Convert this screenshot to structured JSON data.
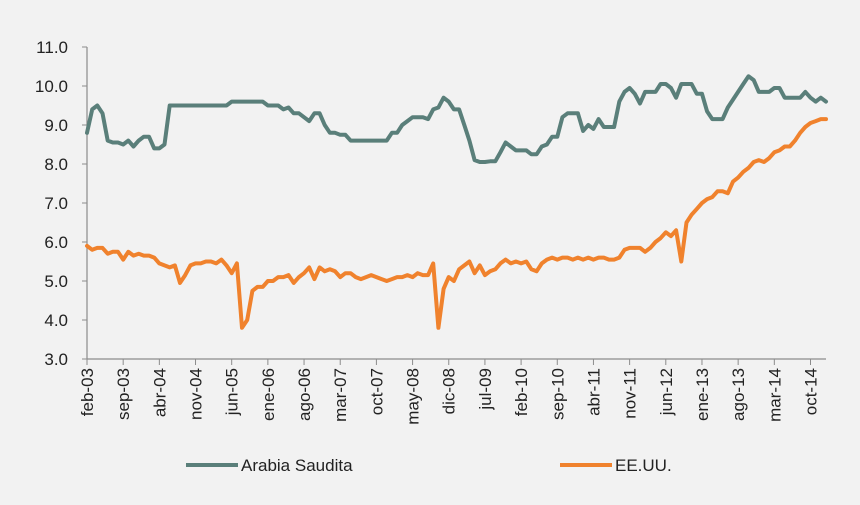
{
  "chart_data": {
    "type": "line",
    "title": "",
    "xlabel": "",
    "ylabel": "",
    "ylim": [
      3.0,
      11.0
    ],
    "y_ticks": [
      "3.0",
      "4.0",
      "5.0",
      "6.0",
      "7.0",
      "8.0",
      "9.0",
      "10.0",
      "11.0"
    ],
    "x_ticks": [
      "feb-03",
      "sep-03",
      "abr-04",
      "nov-04",
      "jun-05",
      "ene-06",
      "ago-06",
      "mar-07",
      "oct-07",
      "may-08",
      "dic-08",
      "jul-09",
      "feb-10",
      "sep-10",
      "abr-11",
      "nov-11",
      "jun-12",
      "ene-13",
      "ago-13",
      "mar-14",
      "oct-14"
    ],
    "x_start": "feb-03",
    "x_end": "dic-14",
    "legend_position": "bottom",
    "series": [
      {
        "name": "Arabia Saudita",
        "color": "#5a7f7a",
        "points": [
          [
            0,
            8.8
          ],
          [
            1,
            9.4
          ],
          [
            2,
            9.5
          ],
          [
            3,
            9.3
          ],
          [
            4,
            8.6
          ],
          [
            5,
            8.55
          ],
          [
            6,
            8.55
          ],
          [
            7,
            8.5
          ],
          [
            8,
            8.6
          ],
          [
            9,
            8.45
          ],
          [
            10,
            8.6
          ],
          [
            11,
            8.7
          ],
          [
            12,
            8.7
          ],
          [
            13,
            8.4
          ],
          [
            14,
            8.4
          ],
          [
            15,
            8.5
          ],
          [
            16,
            9.5
          ],
          [
            17,
            9.5
          ],
          [
            18,
            9.5
          ],
          [
            19,
            9.5
          ],
          [
            20,
            9.5
          ],
          [
            21,
            9.5
          ],
          [
            22,
            9.5
          ],
          [
            23,
            9.5
          ],
          [
            24,
            9.5
          ],
          [
            25,
            9.5
          ],
          [
            26,
            9.5
          ],
          [
            27,
            9.5
          ],
          [
            28,
            9.6
          ],
          [
            29,
            9.6
          ],
          [
            30,
            9.6
          ],
          [
            31,
            9.6
          ],
          [
            32,
            9.6
          ],
          [
            33,
            9.6
          ],
          [
            34,
            9.6
          ],
          [
            35,
            9.5
          ],
          [
            36,
            9.5
          ],
          [
            37,
            9.5
          ],
          [
            38,
            9.4
          ],
          [
            39,
            9.45
          ],
          [
            40,
            9.3
          ],
          [
            41,
            9.3
          ],
          [
            42,
            9.2
          ],
          [
            43,
            9.1
          ],
          [
            44,
            9.3
          ],
          [
            45,
            9.3
          ],
          [
            46,
            9.0
          ],
          [
            47,
            8.8
          ],
          [
            48,
            8.8
          ],
          [
            49,
            8.75
          ],
          [
            50,
            8.75
          ],
          [
            51,
            8.6
          ],
          [
            52,
            8.6
          ],
          [
            53,
            8.6
          ],
          [
            54,
            8.6
          ],
          [
            55,
            8.6
          ],
          [
            56,
            8.6
          ],
          [
            57,
            8.6
          ],
          [
            58,
            8.6
          ],
          [
            59,
            8.8
          ],
          [
            60,
            8.8
          ],
          [
            61,
            9.0
          ],
          [
            62,
            9.1
          ],
          [
            63,
            9.2
          ],
          [
            64,
            9.2
          ],
          [
            65,
            9.2
          ],
          [
            66,
            9.15
          ],
          [
            67,
            9.4
          ],
          [
            68,
            9.45
          ],
          [
            69,
            9.7
          ],
          [
            70,
            9.6
          ],
          [
            71,
            9.4
          ],
          [
            72,
            9.4
          ],
          [
            73,
            9.0
          ],
          [
            74,
            8.6
          ],
          [
            75,
            8.1
          ],
          [
            76,
            8.05
          ],
          [
            77,
            8.05
          ],
          [
            78,
            8.07
          ],
          [
            79,
            8.07
          ],
          [
            80,
            8.3
          ],
          [
            81,
            8.55
          ],
          [
            82,
            8.45
          ],
          [
            83,
            8.35
          ],
          [
            84,
            8.35
          ],
          [
            85,
            8.35
          ],
          [
            86,
            8.25
          ],
          [
            87,
            8.25
          ],
          [
            88,
            8.45
          ],
          [
            89,
            8.5
          ],
          [
            90,
            8.7
          ],
          [
            91,
            8.7
          ],
          [
            92,
            9.2
          ],
          [
            93,
            9.3
          ],
          [
            94,
            9.3
          ],
          [
            95,
            9.3
          ],
          [
            96,
            8.85
          ],
          [
            97,
            9.0
          ],
          [
            98,
            8.9
          ],
          [
            99,
            9.15
          ],
          [
            100,
            8.95
          ],
          [
            101,
            8.95
          ],
          [
            102,
            8.95
          ],
          [
            103,
            9.6
          ],
          [
            104,
            9.85
          ],
          [
            105,
            9.95
          ],
          [
            106,
            9.8
          ],
          [
            107,
            9.55
          ],
          [
            108,
            9.85
          ],
          [
            109,
            9.85
          ],
          [
            110,
            9.85
          ],
          [
            111,
            10.05
          ],
          [
            112,
            10.05
          ],
          [
            113,
            9.95
          ],
          [
            114,
            9.7
          ],
          [
            115,
            10.05
          ],
          [
            116,
            10.05
          ],
          [
            117,
            10.05
          ],
          [
            118,
            9.8
          ],
          [
            119,
            9.8
          ],
          [
            120,
            9.35
          ],
          [
            121,
            9.15
          ],
          [
            122,
            9.15
          ],
          [
            123,
            9.15
          ],
          [
            124,
            9.45
          ],
          [
            125,
            9.65
          ],
          [
            126,
            9.85
          ],
          [
            127,
            10.05
          ],
          [
            128,
            10.25
          ],
          [
            129,
            10.15
          ],
          [
            130,
            9.85
          ],
          [
            131,
            9.85
          ],
          [
            132,
            9.85
          ],
          [
            133,
            9.95
          ],
          [
            134,
            9.95
          ],
          [
            135,
            9.7
          ],
          [
            136,
            9.7
          ],
          [
            137,
            9.7
          ],
          [
            138,
            9.7
          ],
          [
            139,
            9.85
          ],
          [
            140,
            9.7
          ],
          [
            141,
            9.6
          ],
          [
            142,
            9.7
          ],
          [
            143,
            9.6
          ]
        ]
      },
      {
        "name": "EE.UU.",
        "color": "#f0822d",
        "points": [
          [
            0,
            5.9
          ],
          [
            1,
            5.8
          ],
          [
            2,
            5.85
          ],
          [
            3,
            5.85
          ],
          [
            4,
            5.7
          ],
          [
            5,
            5.75
          ],
          [
            6,
            5.75
          ],
          [
            7,
            5.55
          ],
          [
            8,
            5.75
          ],
          [
            9,
            5.65
          ],
          [
            10,
            5.7
          ],
          [
            11,
            5.65
          ],
          [
            12,
            5.65
          ],
          [
            13,
            5.6
          ],
          [
            14,
            5.45
          ],
          [
            15,
            5.4
          ],
          [
            16,
            5.35
          ],
          [
            17,
            5.4
          ],
          [
            18,
            4.95
          ],
          [
            19,
            5.15
          ],
          [
            20,
            5.4
          ],
          [
            21,
            5.45
          ],
          [
            22,
            5.45
          ],
          [
            23,
            5.5
          ],
          [
            24,
            5.5
          ],
          [
            25,
            5.45
          ],
          [
            26,
            5.55
          ],
          [
            27,
            5.4
          ],
          [
            28,
            5.2
          ],
          [
            29,
            5.45
          ],
          [
            30,
            3.8
          ],
          [
            31,
            4.0
          ],
          [
            32,
            4.75
          ],
          [
            33,
            4.85
          ],
          [
            34,
            4.85
          ],
          [
            35,
            5.0
          ],
          [
            36,
            5.0
          ],
          [
            37,
            5.1
          ],
          [
            38,
            5.1
          ],
          [
            39,
            5.15
          ],
          [
            40,
            4.95
          ],
          [
            41,
            5.1
          ],
          [
            42,
            5.2
          ],
          [
            43,
            5.35
          ],
          [
            44,
            5.05
          ],
          [
            45,
            5.35
          ],
          [
            46,
            5.25
          ],
          [
            47,
            5.3
          ],
          [
            48,
            5.25
          ],
          [
            49,
            5.1
          ],
          [
            50,
            5.2
          ],
          [
            51,
            5.2
          ],
          [
            52,
            5.1
          ],
          [
            53,
            5.05
          ],
          [
            54,
            5.1
          ],
          [
            55,
            5.15
          ],
          [
            56,
            5.1
          ],
          [
            57,
            5.05
          ],
          [
            58,
            5.0
          ],
          [
            59,
            5.05
          ],
          [
            60,
            5.1
          ],
          [
            61,
            5.1
          ],
          [
            62,
            5.15
          ],
          [
            63,
            5.1
          ],
          [
            64,
            5.2
          ],
          [
            65,
            5.15
          ],
          [
            66,
            5.15
          ],
          [
            67,
            5.45
          ],
          [
            68,
            3.8
          ],
          [
            69,
            4.8
          ],
          [
            70,
            5.1
          ],
          [
            71,
            5.0
          ],
          [
            72,
            5.3
          ],
          [
            73,
            5.4
          ],
          [
            74,
            5.5
          ],
          [
            75,
            5.2
          ],
          [
            76,
            5.4
          ],
          [
            77,
            5.15
          ],
          [
            78,
            5.25
          ],
          [
            79,
            5.3
          ],
          [
            80,
            5.45
          ],
          [
            81,
            5.55
          ],
          [
            82,
            5.45
          ],
          [
            83,
            5.5
          ],
          [
            84,
            5.45
          ],
          [
            85,
            5.5
          ],
          [
            86,
            5.3
          ],
          [
            87,
            5.25
          ],
          [
            88,
            5.45
          ],
          [
            89,
            5.55
          ],
          [
            90,
            5.6
          ],
          [
            91,
            5.55
          ],
          [
            92,
            5.6
          ],
          [
            93,
            5.6
          ],
          [
            94,
            5.55
          ],
          [
            95,
            5.6
          ],
          [
            96,
            5.55
          ],
          [
            97,
            5.6
          ],
          [
            98,
            5.55
          ],
          [
            99,
            5.6
          ],
          [
            100,
            5.6
          ],
          [
            101,
            5.55
          ],
          [
            102,
            5.55
          ],
          [
            103,
            5.6
          ],
          [
            104,
            5.8
          ],
          [
            105,
            5.85
          ],
          [
            106,
            5.85
          ],
          [
            107,
            5.85
          ],
          [
            108,
            5.75
          ],
          [
            109,
            5.85
          ],
          [
            110,
            6.0
          ],
          [
            111,
            6.1
          ],
          [
            112,
            6.25
          ],
          [
            113,
            6.15
          ],
          [
            114,
            6.3
          ],
          [
            115,
            5.5
          ],
          [
            116,
            6.5
          ],
          [
            117,
            6.7
          ],
          [
            118,
            6.85
          ],
          [
            119,
            7.0
          ],
          [
            120,
            7.1
          ],
          [
            121,
            7.15
          ],
          [
            122,
            7.3
          ],
          [
            123,
            7.3
          ],
          [
            124,
            7.25
          ],
          [
            125,
            7.55
          ],
          [
            126,
            7.65
          ],
          [
            127,
            7.8
          ],
          [
            128,
            7.9
          ],
          [
            129,
            8.05
          ],
          [
            130,
            8.1
          ],
          [
            131,
            8.05
          ],
          [
            132,
            8.15
          ],
          [
            133,
            8.3
          ],
          [
            134,
            8.35
          ],
          [
            135,
            8.45
          ],
          [
            136,
            8.45
          ],
          [
            137,
            8.6
          ],
          [
            138,
            8.8
          ],
          [
            139,
            8.95
          ],
          [
            140,
            9.05
          ],
          [
            141,
            9.1
          ],
          [
            142,
            9.15
          ],
          [
            143,
            9.15
          ]
        ]
      }
    ]
  }
}
